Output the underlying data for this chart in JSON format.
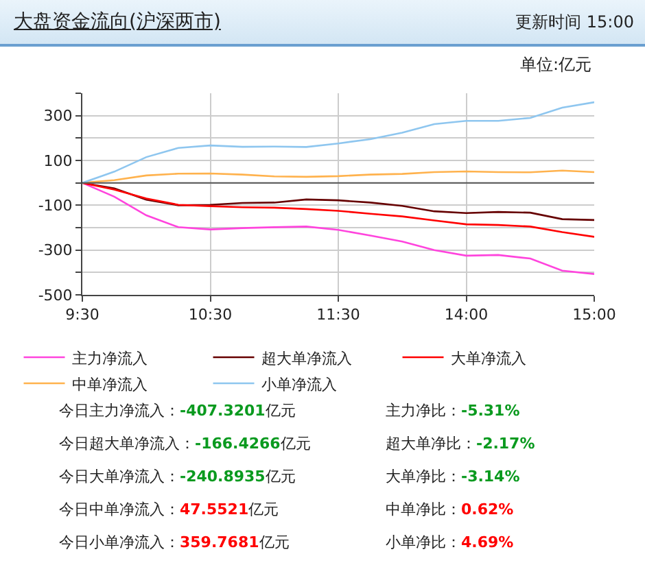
{
  "chart_data": {
    "type": "line",
    "title": "大盘资金流向(沪深两市)",
    "subtitle": "更新时间 15:00",
    "ylabel": "单位:亿元",
    "categories": [
      "9:30",
      null,
      null,
      null,
      "10:30",
      null,
      null,
      null,
      "11:30",
      null,
      null,
      null,
      "14:00",
      null,
      null,
      null,
      "15:00"
    ],
    "ylim": [
      -500,
      400
    ],
    "yticks": [
      {
        "value": -500,
        "label": "-500"
      },
      {
        "value": -400,
        "label": null
      },
      {
        "value": -300,
        "label": "-300"
      },
      {
        "value": -200,
        "label": null
      },
      {
        "value": -100,
        "label": "-100"
      },
      {
        "value": 0,
        "label": null
      },
      {
        "value": 100,
        "label": "100"
      },
      {
        "value": 200,
        "label": null
      },
      {
        "value": 300,
        "label": "300"
      },
      {
        "value": 400,
        "label": null
      }
    ],
    "grid": true,
    "legend": "bottom",
    "marker": "none",
    "line_style": "solid",
    "ref_lines": [
      {
        "axis": "y",
        "value": 0,
        "color": "#555555"
      }
    ],
    "series": [
      {
        "name": "主力净流入",
        "color": "#ff44dd",
        "values": [
          0,
          -62,
          -145,
          -198,
          -208,
          -202,
          -198,
          -195,
          -210,
          -235,
          -262,
          -300,
          -325,
          -322,
          -338,
          -392,
          -407
        ]
      },
      {
        "name": "超大单净流入",
        "color": "#660000",
        "values": [
          0,
          -25,
          -75,
          -100,
          -98,
          -90,
          -88,
          -74,
          -78,
          -88,
          -103,
          -127,
          -135,
          -130,
          -133,
          -162,
          -166
        ]
      },
      {
        "name": "大单净流入",
        "color": "#ff0000",
        "values": [
          0,
          -30,
          -70,
          -98,
          -104,
          -109,
          -111,
          -117,
          -125,
          -138,
          -150,
          -168,
          -185,
          -188,
          -195,
          -220,
          -241
        ]
      },
      {
        "name": "中单净流入",
        "color": "#ffb24d",
        "values": [
          0,
          12,
          33,
          41,
          42,
          37,
          29,
          27,
          30,
          37,
          40,
          48,
          51,
          48,
          47,
          55,
          48
        ]
      },
      {
        "name": "小单净流入",
        "color": "#8ec6ef",
        "values": [
          0,
          50,
          115,
          156,
          167,
          161,
          162,
          160,
          176,
          195,
          224,
          262,
          277,
          277,
          290,
          336,
          360
        ]
      }
    ],
    "annotations": [
      "今日主力净流入：-407.3201亿元",
      "主力净比：-5.31%",
      "今日超大单净流入：-166.4266亿元",
      "超大单净比：-2.17%",
      "今日大单净流入：-240.8935亿元",
      "大单净比：-3.14%",
      "今日中单净流入：47.5521亿元",
      "中单净比：0.62%",
      "今日小单净流入：359.7681亿元",
      "小单净比：4.69%"
    ]
  }
}
